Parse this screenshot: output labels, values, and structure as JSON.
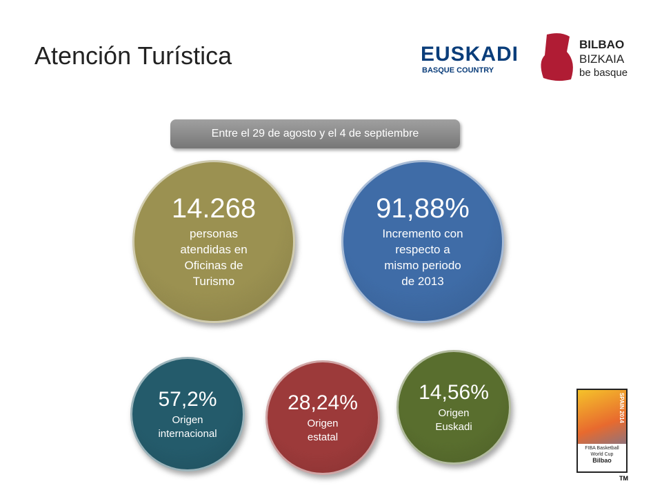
{
  "header": {
    "title": "Atención Turística",
    "logos": {
      "euskadi": "EUSKADI",
      "euskadi_sub": "BASQUE COUNTRY",
      "bilbao": "BILBAO",
      "bizkaia": "BIZKAIA",
      "be_basque": "be basque"
    }
  },
  "banner": "Entre el 29 de agosto y el 4 de septiembre",
  "stats": [
    {
      "value": "14.268",
      "lines": [
        "personas",
        "atendidas en",
        "Oficinas de",
        "Turismo"
      ],
      "color": "#9b9151"
    },
    {
      "value": "91,88%",
      "lines": [
        "Incremento con",
        "respecto a",
        "mismo periodo",
        "de 2013"
      ],
      "color": "#3f6ca7"
    },
    {
      "value": "57,2%",
      "lines": [
        "Origen",
        "internacional"
      ],
      "color": "#245b6b"
    },
    {
      "value": "28,24%",
      "lines": [
        "Origen",
        "estatal"
      ],
      "color": "#9c3a3a"
    },
    {
      "value": "14,56%",
      "lines": [
        "Origen",
        "Euskadi"
      ],
      "color": "#596e2e"
    }
  ],
  "fiba": {
    "top": "SPAIN 2014",
    "line1": "FIBA Basketball",
    "line2": "World Cup",
    "city": "Bilbao",
    "tm": "TM"
  }
}
